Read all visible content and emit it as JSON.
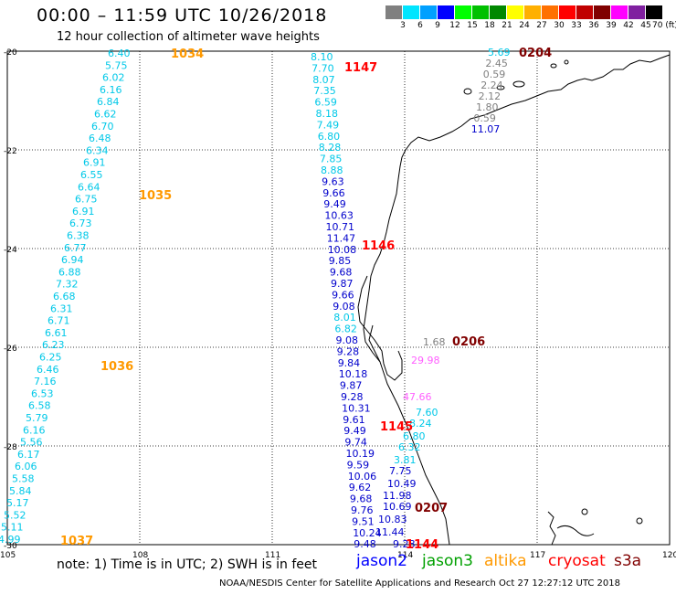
{
  "header": {
    "title": "00:00 – 11:59 UTC 10/26/2018",
    "subtitle": "12 hour collection of altimeter wave heights"
  },
  "legend": {
    "colors": [
      "#808080",
      "#00e5ff",
      "#00a0ff",
      "#0000ff",
      "#00ff00",
      "#00c000",
      "#008800",
      "#ffff00",
      "#ffb000",
      "#ff7000",
      "#ff0000",
      "#c00000",
      "#800000",
      "#ff00ff",
      "#8020a0",
      "#000000"
    ],
    "labels": [
      "3",
      "6",
      "9",
      "12",
      "15",
      "18",
      "21",
      "24",
      "27",
      "30",
      "33",
      "36",
      "39",
      "42",
      "45",
      "70 (ft)"
    ]
  },
  "axes": {
    "lat_labels": [
      "-20",
      "-22",
      "-24",
      "-26",
      "-28",
      "-30"
    ],
    "lon_labels": [
      "105",
      "108",
      "111",
      "114",
      "117",
      "120"
    ]
  },
  "passes": [
    {
      "id": "1034",
      "sat": "altika",
      "color": "#ff9900"
    },
    {
      "id": "1035",
      "sat": "altika",
      "color": "#ff9900"
    },
    {
      "id": "1036",
      "sat": "altika",
      "color": "#ff9900"
    },
    {
      "id": "1037",
      "sat": "altika",
      "color": "#ff9900"
    },
    {
      "id": "1147",
      "sat": "cryosat",
      "color": "#ff0000"
    },
    {
      "id": "1146",
      "sat": "cryosat",
      "color": "#ff0000"
    },
    {
      "id": "1145",
      "sat": "cryosat",
      "color": "#ff0000"
    },
    {
      "id": "1144",
      "sat": "cryosat",
      "color": "#ff0000"
    },
    {
      "id": "0204",
      "sat": "s3a",
      "color": "#800000"
    },
    {
      "id": "0206",
      "sat": "s3a",
      "color": "#800000"
    },
    {
      "id": "0207",
      "sat": "s3a",
      "color": "#800000"
    }
  ],
  "tracks": {
    "altika_west": [
      "6.40",
      "5.75",
      "6.02",
      "6.16",
      "6.84",
      "6.62",
      "6.70",
      "6.48",
      "6.34",
      "6.91",
      "6.55",
      "6.64",
      "6.75",
      "6.91",
      "6.73",
      "6.38",
      "6.77",
      "6.94",
      "6.88",
      "7.32",
      "6.68",
      "6.31",
      "6.71",
      "6.61",
      "6.23",
      "6.25",
      "6.46",
      "7.16",
      "6.53",
      "6.58",
      "5.79",
      "6.16",
      "5.56",
      "6.17",
      "6.06",
      "5.58",
      "5.84",
      "5.17",
      "5.52",
      "5.11",
      "4.99"
    ],
    "cryosat_mid": [
      "8.10",
      "7.70",
      "8.07",
      "7.35",
      "6.59",
      "8.18",
      "7.49",
      "6.80",
      "8.28",
      "7.85",
      "8.88",
      "9.63",
      "9.66",
      "9.49",
      "10.63",
      "10.71",
      "11.47",
      "10.08",
      "9.85",
      "9.68",
      "9.87",
      "9.66",
      "9.08",
      "8.01",
      "6.82",
      "9.08",
      "9.28",
      "9.84",
      "10.18",
      "9.87",
      "9.28",
      "10.31",
      "9.61",
      "9.49",
      "9.74",
      "10.19",
      "9.59",
      "10.06",
      "9.62",
      "9.68",
      "9.76",
      "9.51",
      "10.24",
      "9.48"
    ],
    "s3a_north": [
      "5.69",
      "2.45",
      "0.59",
      "2.24",
      "2.12",
      "1.80",
      "0.59",
      "11.07"
    ],
    "s3a_mid": [
      "1.68",
      "29.98"
    ],
    "east_coast": [
      "47.66",
      "7.60",
      "8.24",
      "6.80",
      "6.32",
      "3.81",
      "7.75",
      "10.49",
      "11.98",
      "10.69",
      "10.83",
      "11.44",
      "9.28"
    ]
  },
  "footer": {
    "note": "note: 1) Time is in UTC; 2) SWH is in feet",
    "credit": "NOAA/NESDIS Center for Satellite Applications and Research    Oct 27 12:27:12 UTC 2018",
    "sat_names": [
      "jason2",
      "jason3",
      "altika",
      "cryosat",
      "s3a"
    ],
    "sat_colors": [
      "#0000ff",
      "#00a000",
      "#ff9900",
      "#ff0000",
      "#800000"
    ]
  }
}
